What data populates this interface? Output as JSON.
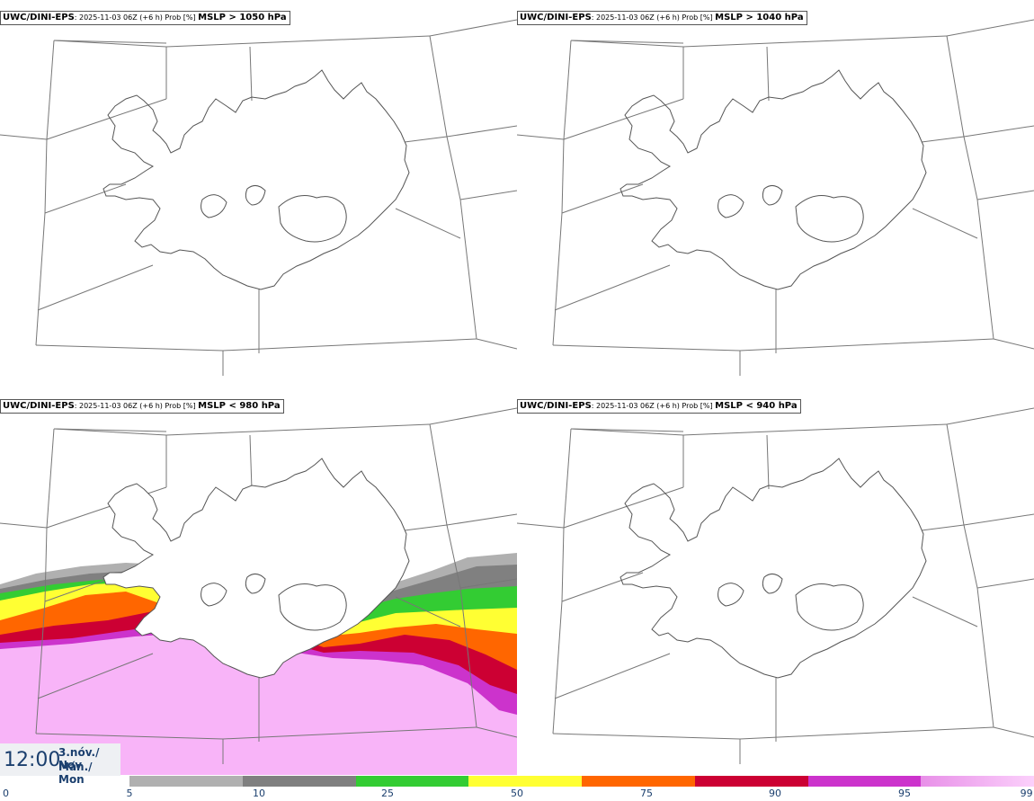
{
  "panels": [
    {
      "model": "UWC/DINI-EPS",
      "run": ": 2025-11-03 06Z (+6 h) Prob [%] ",
      "field": "MSLP > 1050 hPa"
    },
    {
      "model": "UWC/DINI-EPS",
      "run": ": 2025-11-03 06Z (+6 h) Prob [%] ",
      "field": "MSLP > 1040 hPa"
    },
    {
      "model": "UWC/DINI-EPS",
      "run": ": 2025-11-03 06Z (+6 h) Prob [%] ",
      "field": "MSLP < 980 hPa"
    },
    {
      "model": "UWC/DINI-EPS",
      "run": ": 2025-11-03 06Z (+6 h) Prob [%] ",
      "field": "MSLP < 940 hPa"
    }
  ],
  "valid_time": {
    "time": "12:00",
    "date_line": "3.nóv./ Nov",
    "day_line": "Mán./ Mon"
  },
  "legend": {
    "ticks": [
      "0",
      "5",
      "10",
      "25",
      "50",
      "75",
      "90",
      "95",
      "99"
    ],
    "colors": [
      "#b0b0b0",
      "#808080",
      "#33cc33",
      "#ffff33",
      "#ff6600",
      "#cc0033",
      "#cc33cc",
      "#f8b4f8"
    ]
  },
  "colors": {
    "coast": "#555555",
    "grid": "#777777",
    "label": "#1b3f6e"
  }
}
